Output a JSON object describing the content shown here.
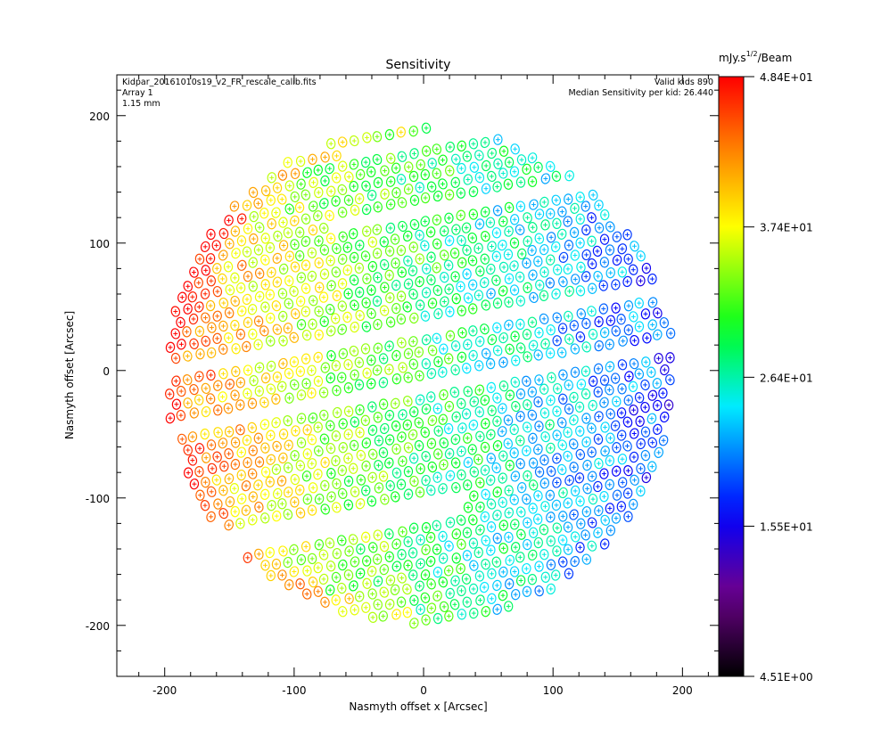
{
  "chart_data": {
    "type": "scatter",
    "title": "Sensitivity",
    "xlabel": "Nasmyth offset x [Arcsec]",
    "ylabel": "Nasmyth offset [Arcsec]",
    "xlim": [
      -237,
      228
    ],
    "ylim": [
      -240,
      232
    ],
    "x_ticks": [
      -200,
      -100,
      0,
      100,
      200
    ],
    "y_ticks": [
      -200,
      -100,
      0,
      100,
      200
    ],
    "info_left": [
      "Kidpar_20161010s19_v2_FR_rescale_calib.fits",
      "Array 1",
      "1.15 mm"
    ],
    "info_right": [
      "Valid kids 890",
      "Median Sensitivity per kid: 26.440"
    ],
    "grid": false,
    "marker": "circle-with-cross",
    "colorbar": {
      "title": "mJy.s^1/2/Beam",
      "title_main": "mJy.s",
      "title_sup": "1/2",
      "title_tail": "/Beam",
      "min": 4.51,
      "max": 48.4,
      "tick_values": [
        48.4,
        37.4,
        26.4,
        15.5,
        4.51
      ],
      "tick_labels": [
        "4.84E+01",
        "3.74E+01",
        "2.64E+01",
        "1.55E+01",
        "4.51E+00"
      ],
      "colormap": "rainbow"
    },
    "array_layout": {
      "center_x": -3,
      "center_y": -4,
      "radius": 196,
      "pitch_x": 9.2,
      "row_spacing": 9.2,
      "row_tilt": 0.17,
      "gaps": [
        {
          "x_min": -60,
          "x_max": 200,
          "y_center": 182,
          "half_width": 6
        },
        {
          "x_min": -70,
          "x_max": 200,
          "y_center": 122,
          "half_width": 5
        },
        {
          "x_min": -200,
          "x_max": 200,
          "y_center": 36,
          "half_width": 4.5
        },
        {
          "x_min": -200,
          "x_max": 200,
          "y_center": -14,
          "half_width": 4.5
        },
        {
          "x_min": -200,
          "x_max": 30,
          "y_center": -110,
          "half_width": 8
        }
      ]
    },
    "sensitivity_trend": {
      "west_value": 47,
      "east_value": 18,
      "north_edge_value": 30,
      "note": "red along the western rim, green/yellow in the western half, cyan to blue toward the east"
    },
    "valid_kids": 890,
    "median_sensitivity": 26.44
  }
}
